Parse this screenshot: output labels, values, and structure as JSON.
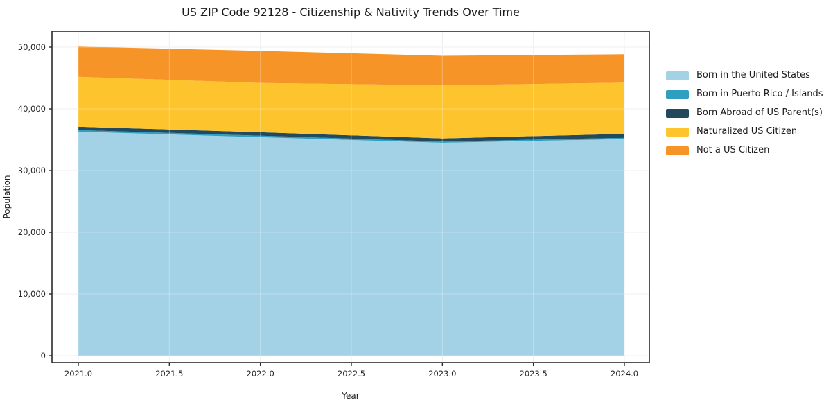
{
  "chart": {
    "title": "US ZIP Code 92128 - Citizenship & Nativity Trends Over Time",
    "xlabel": "Year",
    "ylabel": "Population"
  },
  "chart_data": {
    "type": "area",
    "stacked": true,
    "title": "US ZIP Code 92128 - Citizenship & Nativity Trends Over Time",
    "xlabel": "Year",
    "ylabel": "Population",
    "x": [
      2021,
      2022,
      2023,
      2024
    ],
    "series": [
      {
        "name": "Born in the United States",
        "color": "#A3D2E7",
        "values": [
          36300,
          35400,
          34500,
          35100
        ]
      },
      {
        "name": "Born in Puerto Rico / Islands",
        "color": "#2E9FC0",
        "values": [
          250,
          250,
          200,
          200
        ]
      },
      {
        "name": "Born Abroad of US Parent(s)",
        "color": "#234A5C",
        "values": [
          550,
          550,
          500,
          650
        ]
      },
      {
        "name": "Naturalized US Citizen",
        "color": "#FDC42E",
        "values": [
          8100,
          8000,
          8600,
          8300
        ]
      },
      {
        "name": "Not a US Citizen",
        "color": "#F79428",
        "values": [
          4900,
          5200,
          4800,
          4600
        ]
      }
    ],
    "totals": [
      50100,
      49400,
      48600,
      48850
    ],
    "xlim": [
      2020.85,
      2024.14
    ],
    "ylim": [
      -1100,
      52600
    ],
    "xticks": [
      2021.0,
      2021.5,
      2022.0,
      2022.5,
      2023.0,
      2023.5,
      2024.0
    ],
    "xticklabels": [
      "2021.0",
      "2021.5",
      "2022.0",
      "2022.5",
      "2023.0",
      "2023.5",
      "2024.0"
    ],
    "yticks": [
      0,
      10000,
      20000,
      30000,
      40000,
      50000
    ],
    "yticklabels": [
      "0",
      "10,000",
      "20,000",
      "30,000",
      "40,000",
      "50,000"
    ],
    "grid": true,
    "legend_position": "right"
  },
  "style": {
    "background": "#ffffff",
    "spine_color": "#2b2b2b",
    "grid_color": "#e9e9e9",
    "grid_overlay": "rgba(255,255,255,0.30)",
    "tick_color": "#2b2b2b"
  }
}
